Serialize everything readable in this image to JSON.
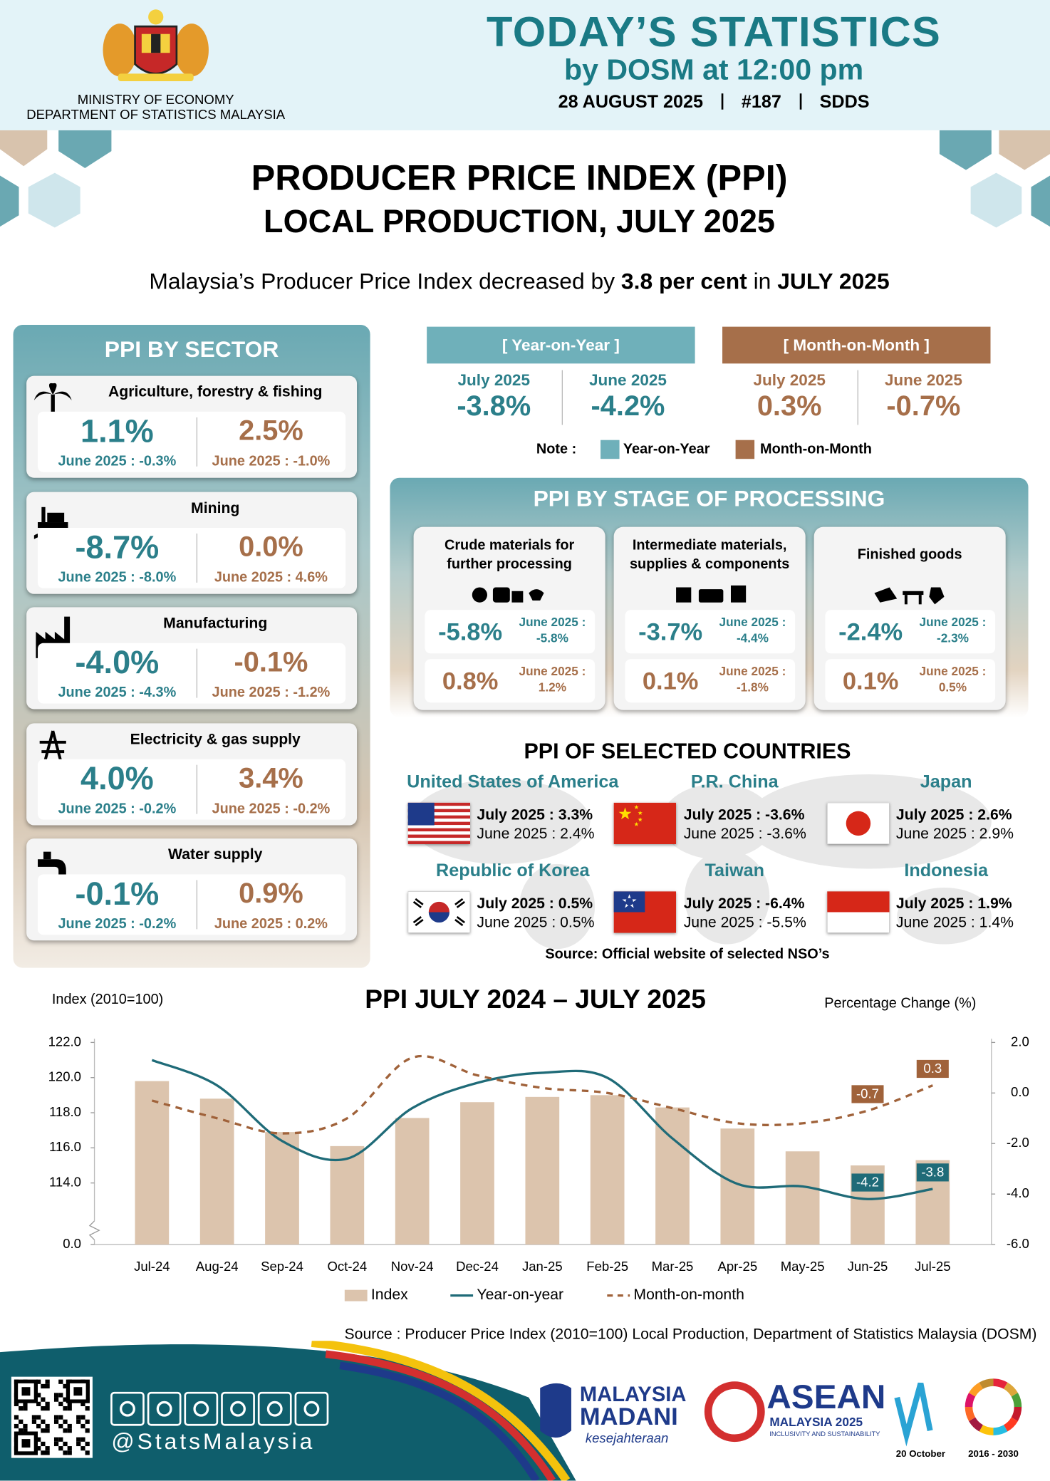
{
  "header": {
    "ministry": "MINISTRY OF ECONOMY",
    "department": "DEPARTMENT OF STATISTICS MALAYSIA",
    "title": "TODAY’S STATISTICS",
    "subtitle": "by DOSM at 12:00 pm",
    "date": "28 AUGUST 2025",
    "issue": "#187",
    "standard": "SDDS"
  },
  "report": {
    "title": "PRODUCER PRICE INDEX (PPI)",
    "subtitle": "LOCAL PRODUCTION, JULY 2025"
  },
  "headline": {
    "before": "Malaysia’s Producer Price Index decreased by",
    "value": "3.8 per cent",
    "middle": "in",
    "period": "JULY 2025"
  },
  "sectors": {
    "title": "PPI BY SECTOR",
    "items": [
      {
        "name": "Agriculture, forestry  & fishing",
        "yoy": "1.1%",
        "yoy_prev": "June 2025 : -0.3%",
        "mom": "2.5%",
        "mom_prev": "June 2025 : -1.0%"
      },
      {
        "name": "Mining",
        "yoy": "-8.7%",
        "yoy_prev": "June 2025 : -8.0%",
        "mom": "0.0%",
        "mom_prev": "June 2025 : 4.6%"
      },
      {
        "name": "Manufacturing",
        "yoy": "-4.0%",
        "yoy_prev": "June 2025 : -4.3%",
        "mom": "-0.1%",
        "mom_prev": "June 2025 : -1.2%"
      },
      {
        "name": "Electricity  & gas supply",
        "yoy": "4.0%",
        "yoy_prev": "June 2025 : -0.2%",
        "mom": "3.4%",
        "mom_prev": "June 2025 : -0.2%"
      },
      {
        "name": "Water supply",
        "yoy": "-0.1%",
        "yoy_prev": "June 2025 : -0.2%",
        "mom": "0.9%",
        "mom_prev": "June 2025 : 0.2%"
      }
    ]
  },
  "overall": {
    "yoy": {
      "label": "[ Year-on-Year ]",
      "items": [
        {
          "period": "July 2025",
          "value": "-3.8%"
        },
        {
          "period": "June 2025",
          "value": "-4.2%"
        }
      ]
    },
    "mom": {
      "label": "[ Month-on-Month ]",
      "items": [
        {
          "period": "July 2025",
          "value": "0.3%"
        },
        {
          "period": "June 2025",
          "value": "-0.7%"
        }
      ]
    },
    "note": {
      "label": "Note :",
      "yoy": "Year-on-Year",
      "mom": "Month-on-Month"
    }
  },
  "stages": {
    "title": "PPI BY STAGE OF PROCESSING",
    "items": [
      {
        "name": "Crude materials for further processing",
        "yoy": "-5.8%",
        "yoy_prev_label": "June 2025 :",
        "yoy_prev": "-5.8%",
        "mom": "0.8%",
        "mom_prev_label": "June 2025 :",
        "mom_prev": "1.2%"
      },
      {
        "name": "Intermediate materials, supplies & components",
        "yoy": "-3.7%",
        "yoy_prev_label": "June 2025 :",
        "yoy_prev": "-4.4%",
        "mom": "0.1%",
        "mom_prev_label": "June 2025 :",
        "mom_prev": "-1.8%"
      },
      {
        "name": "Finished goods",
        "yoy": "-2.4%",
        "yoy_prev_label": "June 2025 :",
        "yoy_prev": "-2.3%",
        "mom": "0.1%",
        "mom_prev_label": "June 2025 :",
        "mom_prev": "0.5%"
      }
    ]
  },
  "countries": {
    "title": "PPI OF SELECTED COUNTRIES",
    "items": [
      {
        "name": "United States of America",
        "current": "July  2025 : 3.3%",
        "previous": "June  2025 : 2.4%"
      },
      {
        "name": "P.R. China",
        "current": "July  2025 : -3.6%",
        "previous": "June  2025 : -3.6%"
      },
      {
        "name": "Japan",
        "current": "July  2025 : 2.6%",
        "previous": "June  2025 : 2.9%"
      },
      {
        "name": "Republic of Korea",
        "current": "July  2025 : 0.5%",
        "previous": "June  2025 : 0.5%"
      },
      {
        "name": "Taiwan",
        "current": "July  2025 : -6.4%",
        "previous": "June  2025 : -5.5%"
      },
      {
        "name": "Indonesia",
        "current": "July  2025 : 1.9%",
        "previous": "June  2025 : 1.4%"
      }
    ],
    "source": "Source: Official website of selected NSO’s"
  },
  "chart_data": {
    "type": "bar_line",
    "title": "PPI JULY 2024 – JULY 2025",
    "y_label": "Index (2010=100)",
    "y2_label": "Percentage Change (%)",
    "categories": [
      "Jul-24",
      "Aug-24",
      "Sep-24",
      "Oct-24",
      "Nov-24",
      "Dec-24",
      "Jan-25",
      "Feb-25",
      "Mar-25",
      "Apr-25",
      "May-25",
      "Jun-25",
      "Jul-25"
    ],
    "series": [
      {
        "name": "Index",
        "type": "bar",
        "color": "#dcc4ad",
        "values": [
          119.8,
          118.8,
          116.9,
          116.1,
          117.7,
          118.6,
          118.9,
          119.0,
          118.3,
          117.1,
          115.8,
          115.0,
          115.3
        ]
      },
      {
        "name": "Year-on-year",
        "type": "line",
        "axis": "y2",
        "color": "#1f6b78",
        "values": [
          1.3,
          0.3,
          -1.9,
          -2.6,
          -0.6,
          0.4,
          0.8,
          0.6,
          -1.8,
          -3.6,
          -3.7,
          -4.2,
          -3.8
        ],
        "value_labels": [
          null,
          null,
          null,
          null,
          null,
          null,
          null,
          null,
          null,
          null,
          null,
          "-4.2",
          "-3.8"
        ]
      },
      {
        "name": "Month-on-month",
        "type": "line",
        "axis": "y2",
        "dash": true,
        "color": "#a0623a",
        "values": [
          -0.3,
          -1.0,
          -1.6,
          -1.0,
          1.4,
          0.7,
          0.2,
          0.0,
          -0.6,
          -1.2,
          -1.2,
          -0.7,
          0.3
        ],
        "value_labels": [
          null,
          null,
          null,
          null,
          null,
          null,
          null,
          null,
          null,
          null,
          null,
          "-0.7",
          "0.3"
        ]
      }
    ],
    "ylim": [
      0,
      122
    ],
    "y_break": [
      0,
      112
    ],
    "yticks": [
      {
        "value": 0,
        "label": "0.0"
      },
      {
        "value": 114,
        "label": "114.0"
      },
      {
        "value": 116,
        "label": "116.0"
      },
      {
        "value": 118,
        "label": "118.0"
      },
      {
        "value": 120,
        "label": "120.0"
      },
      {
        "value": 122,
        "label": "122.0"
      }
    ],
    "y2lim": [
      -6,
      2
    ],
    "y2ticks": [
      {
        "value": -6,
        "label": "-6.0"
      },
      {
        "value": -4,
        "label": "-4.0"
      },
      {
        "value": -2,
        "label": "-2.0"
      },
      {
        "value": 0,
        "label": "0.0"
      },
      {
        "value": 2,
        "label": "2.0"
      }
    ],
    "legend": "bottom",
    "grid": false
  },
  "chart_source": "Source : Producer Price Index (2010=100) Local Production, Department of Statistics Malaysia (DOSM)",
  "footer": {
    "handle": "@StatsMalaysia",
    "logos": [
      "MALAYSIA",
      "MADANI",
      "kesejahteraan",
      "ASEAN",
      "MALAYSIA 2025",
      "INCLUSIVITY AND SUSTAINABILITY",
      "20 October",
      "2016 - 2030"
    ]
  }
}
